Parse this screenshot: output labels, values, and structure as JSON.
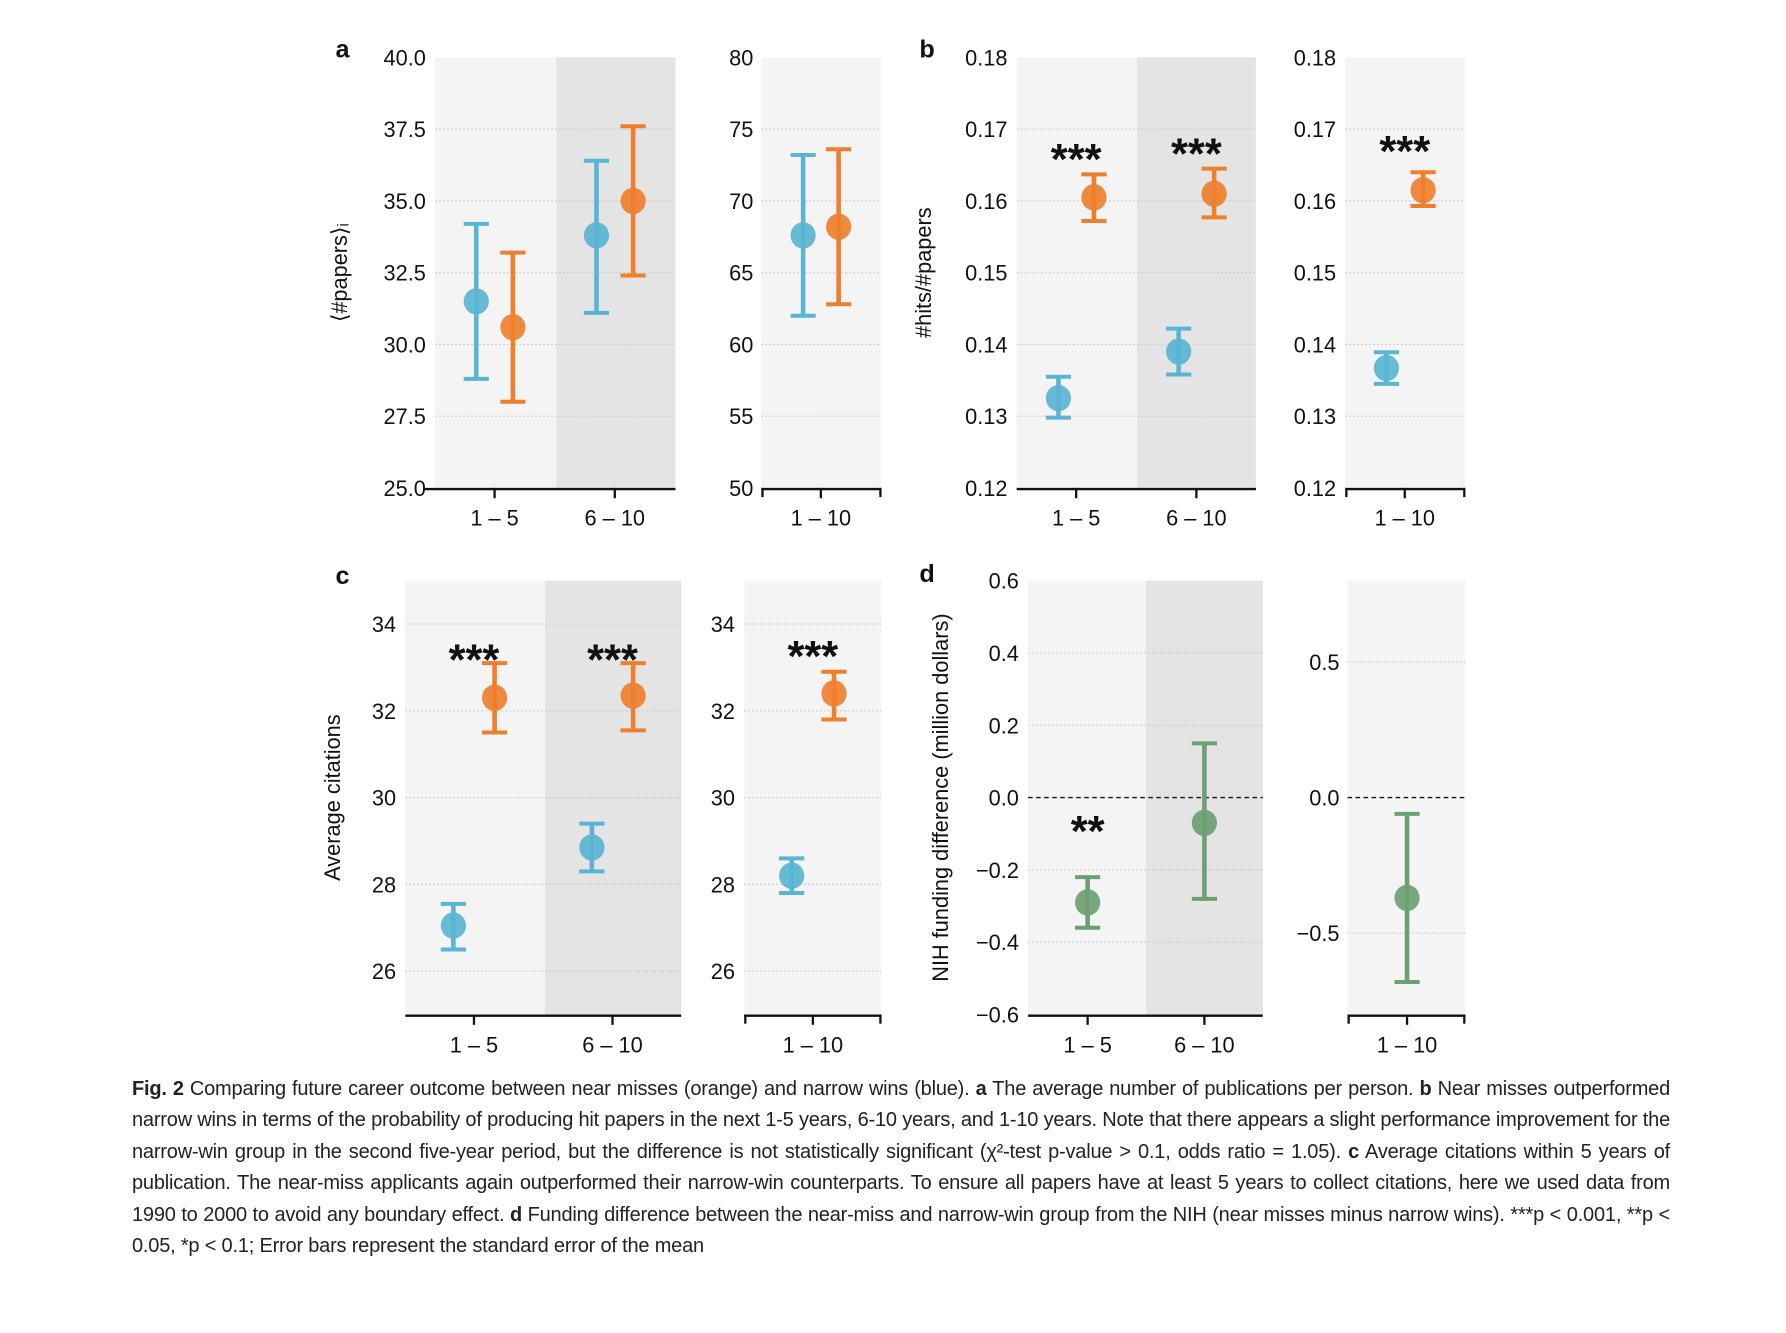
{
  "colors": {
    "near_miss": "#EE7F2D",
    "narrow_win": "#5AB4D3",
    "difference": "#6E9F72",
    "shade_light": "#F4F4F4",
    "shade_dark": "#E4E4E4"
  },
  "chart_data": [
    {
      "panel": "a",
      "type": "scatter",
      "errorbars": true,
      "ylabel": "⟨#papers⟩ᵢ",
      "ylim": [
        25.0,
        40.0
      ],
      "yticks": [
        "25.0",
        "27.5",
        "30.0",
        "32.5",
        "35.0",
        "37.5",
        "40.0"
      ],
      "categories": [
        "1 – 5",
        "6 – 10"
      ],
      "grid": true,
      "series": [
        {
          "name": "narrow wins",
          "color": "#5AB4D3",
          "values": [
            31.5,
            33.8
          ],
          "lower": [
            28.8,
            31.1
          ],
          "upper": [
            34.2,
            36.4
          ]
        },
        {
          "name": "near misses",
          "color": "#EE7F2D",
          "values": [
            30.6,
            35.0
          ],
          "lower": [
            28.0,
            32.4
          ],
          "upper": [
            33.2,
            37.6
          ]
        }
      ],
      "significance": [
        "",
        ""
      ]
    },
    {
      "panel": "",
      "type": "scatter",
      "errorbars": true,
      "ylabel": "",
      "ylim": [
        50,
        80
      ],
      "yticks": [
        "50",
        "55",
        "60",
        "65",
        "70",
        "75",
        "80"
      ],
      "categories": [
        "1 – 10"
      ],
      "grid": true,
      "series": [
        {
          "name": "narrow wins",
          "color": "#5AB4D3",
          "values": [
            67.6
          ],
          "lower": [
            62.0
          ],
          "upper": [
            73.2
          ]
        },
        {
          "name": "near misses",
          "color": "#EE7F2D",
          "values": [
            68.2
          ],
          "lower": [
            62.8
          ],
          "upper": [
            73.6
          ]
        }
      ],
      "significance": [
        ""
      ]
    },
    {
      "panel": "b",
      "type": "scatter",
      "errorbars": true,
      "ylabel": "#hits/#papers",
      "ylim": [
        0.12,
        0.18
      ],
      "yticks": [
        "0.12",
        "0.13",
        "0.14",
        "0.15",
        "0.16",
        "0.17",
        "0.18"
      ],
      "categories": [
        "1 – 5",
        "6 – 10"
      ],
      "grid": true,
      "series": [
        {
          "name": "narrow wins",
          "color": "#5AB4D3",
          "values": [
            0.1325,
            0.139
          ],
          "lower": [
            0.1298,
            0.1358
          ],
          "upper": [
            0.1355,
            0.1422
          ]
        },
        {
          "name": "near misses",
          "color": "#EE7F2D",
          "values": [
            0.1605,
            0.161
          ],
          "lower": [
            0.1572,
            0.1577
          ],
          "upper": [
            0.1637,
            0.1645
          ]
        }
      ],
      "significance": [
        "***",
        "***"
      ]
    },
    {
      "panel": "",
      "type": "scatter",
      "errorbars": true,
      "ylabel": "",
      "ylim": [
        0.12,
        0.18
      ],
      "yticks": [
        "0.12",
        "0.13",
        "0.14",
        "0.15",
        "0.16",
        "0.17",
        "0.18"
      ],
      "categories": [
        "1 – 10"
      ],
      "grid": true,
      "series": [
        {
          "name": "narrow wins",
          "color": "#5AB4D3",
          "values": [
            0.1367
          ],
          "lower": [
            0.1345
          ],
          "upper": [
            0.1389
          ]
        },
        {
          "name": "near misses",
          "color": "#EE7F2D",
          "values": [
            0.1615
          ],
          "lower": [
            0.1593
          ],
          "upper": [
            0.164
          ]
        }
      ],
      "significance": [
        "***"
      ]
    },
    {
      "panel": "c",
      "type": "scatter",
      "errorbars": true,
      "ylabel": "Average citations",
      "ylim": [
        25,
        35
      ],
      "yticks": [
        "26",
        "28",
        "30",
        "32",
        "34"
      ],
      "categories": [
        "1 – 5",
        "6 – 10"
      ],
      "grid": true,
      "series": [
        {
          "name": "narrow wins",
          "color": "#5AB4D3",
          "values": [
            27.05,
            28.85
          ],
          "lower": [
            26.5,
            28.3
          ],
          "upper": [
            27.55,
            29.4
          ]
        },
        {
          "name": "near misses",
          "color": "#EE7F2D",
          "values": [
            32.3,
            32.35
          ],
          "lower": [
            31.5,
            31.55
          ],
          "upper": [
            33.1,
            33.1
          ]
        }
      ],
      "significance": [
        "***",
        "***"
      ]
    },
    {
      "panel": "",
      "type": "scatter",
      "errorbars": true,
      "ylabel": "",
      "ylim": [
        25,
        35
      ],
      "yticks": [
        "26",
        "28",
        "30",
        "32",
        "34"
      ],
      "categories": [
        "1 – 10"
      ],
      "grid": true,
      "series": [
        {
          "name": "narrow wins",
          "color": "#5AB4D3",
          "values": [
            28.2
          ],
          "lower": [
            27.8
          ],
          "upper": [
            28.6
          ]
        },
        {
          "name": "near misses",
          "color": "#EE7F2D",
          "values": [
            32.4
          ],
          "lower": [
            31.8
          ],
          "upper": [
            32.9
          ]
        }
      ],
      "significance": [
        "***"
      ]
    },
    {
      "panel": "d",
      "type": "scatter",
      "errorbars": true,
      "ylabel": "NIH funding difference (million dollars)",
      "ylim": [
        -0.6,
        0.6
      ],
      "yticks": [
        "−0.6",
        "−0.4",
        "−0.2",
        "0.0",
        "0.2",
        "0.4",
        "0.6"
      ],
      "categories": [
        "1 – 5",
        "6 – 10"
      ],
      "grid": true,
      "zero_line": true,
      "series": [
        {
          "name": "near misses minus narrow wins",
          "color": "#6E9F72",
          "values": [
            -0.29,
            -0.07
          ],
          "lower": [
            -0.36,
            -0.28
          ],
          "upper": [
            -0.22,
            0.15
          ]
        }
      ],
      "significance": [
        "**",
        ""
      ]
    },
    {
      "panel": "",
      "type": "scatter",
      "errorbars": true,
      "ylabel": "",
      "ylim": [
        -0.8,
        0.8
      ],
      "yticks": [
        "−0.5",
        "0.0",
        "0.5"
      ],
      "categories": [
        "1 – 10"
      ],
      "grid": true,
      "zero_line": true,
      "series": [
        {
          "name": "near misses minus narrow wins",
          "color": "#6E9F72",
          "values": [
            -0.37
          ],
          "lower": [
            -0.68
          ],
          "upper": [
            -0.06
          ]
        }
      ],
      "significance": [
        ""
      ]
    }
  ],
  "caption": {
    "fig_label": "Fig. 2",
    "intro": " Comparing future career outcome between near misses (orange) and narrow wins (blue). ",
    "a_label": "a",
    "a_text": " The average number of publications per person. ",
    "b_label": "b",
    "b_text": " Near misses outperformed narrow wins in terms of the probability of producing hit papers in the next 1-5 years, 6-10 years, and 1-10 years. Note that there appears a slight performance improvement for the narrow-win group in the second five-year period, but the difference is not statistically significant (χ²-test p-value > 0.1, odds ratio = 1.05). ",
    "c_label": "c",
    "c_text": " Average citations within 5 years of publication. The near-miss applicants again outperformed their narrow-win counterparts. To ensure all papers have at least 5 years to collect citations, here we used data from 1990 to 2000 to avoid any boundary effect. ",
    "d_label": "d",
    "d_text": " Funding difference between the near-miss and narrow-win group from the NIH (near misses minus narrow wins). ***p < 0.001, **p < 0.05, *p < 0.1; Error bars represent the standard error of the mean"
  }
}
